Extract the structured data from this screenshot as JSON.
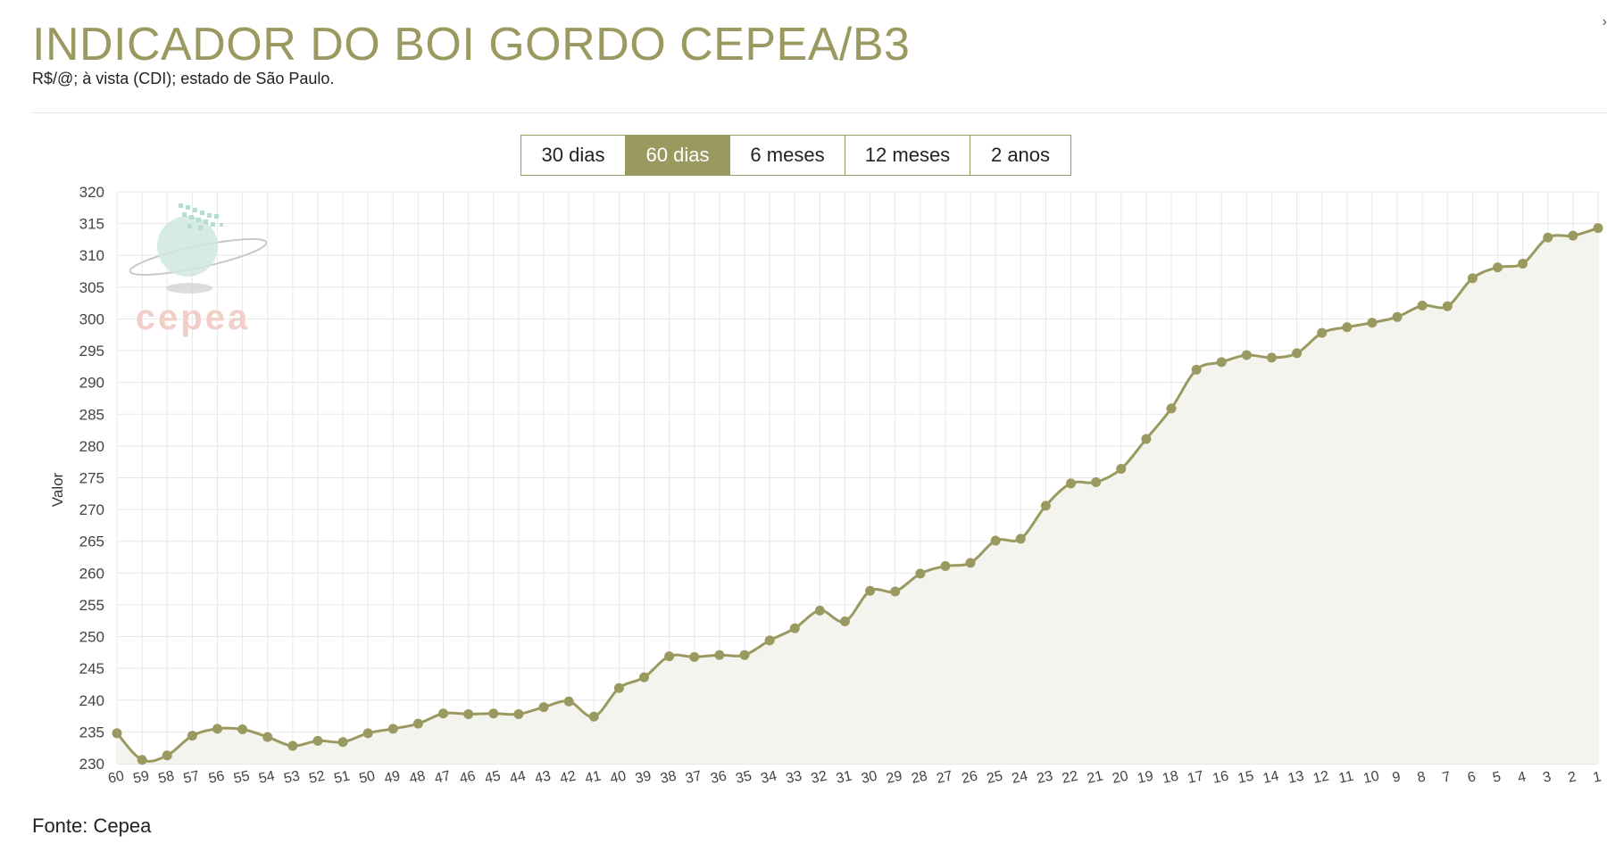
{
  "header": {
    "title": "INDICADOR DO BOI GORDO CEPEA/B3",
    "subtitle": "R$/@; à vista (CDI); estado de São Paulo."
  },
  "range_selector": {
    "options": [
      "30 dias",
      "60 dias",
      "6 meses",
      "12 meses",
      "2 anos"
    ],
    "active": "60 dias"
  },
  "watermark": {
    "text": "cepea",
    "icon": "globe-logo"
  },
  "footer": {
    "source": "Fonte: Cepea"
  },
  "colors": {
    "accent": "#9a9a60",
    "line": "#9a9a60",
    "fill": "#f4f4ef",
    "grid": "#e8e8e8",
    "watermark_text": "#f1cfc8"
  },
  "chart_data": {
    "type": "area",
    "title": "",
    "xlabel": "",
    "ylabel": "Valor",
    "ylim": [
      230,
      320
    ],
    "yticks": [
      230,
      235,
      240,
      245,
      250,
      255,
      260,
      265,
      270,
      275,
      280,
      285,
      290,
      295,
      300,
      305,
      310,
      315,
      320
    ],
    "grid": true,
    "x": [
      60,
      59,
      58,
      57,
      56,
      55,
      54,
      53,
      52,
      51,
      50,
      49,
      48,
      47,
      46,
      45,
      44,
      43,
      42,
      41,
      40,
      39,
      38,
      37,
      36,
      35,
      34,
      33,
      32,
      31,
      30,
      29,
      28,
      27,
      26,
      25,
      24,
      23,
      22,
      21,
      20,
      19,
      18,
      17,
      16,
      15,
      14,
      13,
      12,
      11,
      10,
      9,
      8,
      7,
      6,
      5,
      4,
      3,
      2,
      1
    ],
    "series": [
      {
        "values": [
          234.8,
          230.6,
          231.3,
          234.4,
          235.5,
          235.4,
          234.2,
          232.8,
          233.6,
          233.4,
          234.8,
          235.5,
          236.3,
          237.9,
          237.8,
          237.9,
          237.8,
          238.9,
          239.8,
          237.4,
          241.9,
          243.6,
          246.9,
          246.8,
          247.1,
          247.1,
          249.4,
          251.3,
          254.1,
          252.4,
          257.2,
          257.1,
          259.9,
          261.1,
          261.6,
          265.1,
          265.4,
          270.6,
          274.1,
          274.3,
          276.4,
          281.1,
          285.9,
          292.0,
          293.2,
          294.3,
          293.9,
          294.6,
          297.8,
          298.7,
          299.4,
          300.3,
          302.1,
          302.0,
          306.4,
          308.1,
          308.7,
          312.8,
          313.1,
          314.3
        ]
      }
    ]
  }
}
